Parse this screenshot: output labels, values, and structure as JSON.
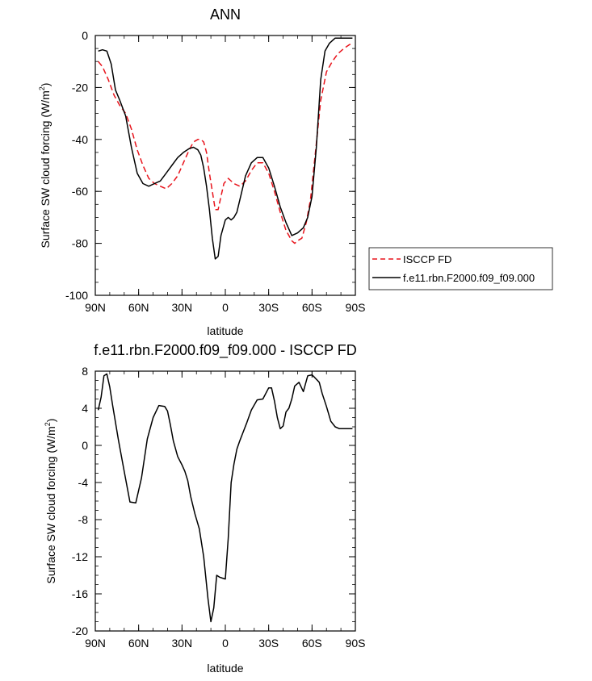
{
  "chart_data": [
    {
      "type": "line",
      "title": "ANN",
      "xlabel": "latitude",
      "ylabel": "Surface SW cloud forcing (W/m",
      "ylabel_sup": "2",
      "ylabel_close": ")",
      "xlim": [
        -90,
        90
      ],
      "ylim": [
        -100,
        0
      ],
      "xticks": [
        -90,
        -60,
        -30,
        0,
        30,
        60,
        90
      ],
      "xticklabels": [
        "90N",
        "60N",
        "30N",
        "0",
        "30S",
        "60S",
        "90S"
      ],
      "yticks": [
        0,
        -20,
        -40,
        -60,
        -80,
        -100
      ],
      "yticklabels": [
        "0",
        "-20",
        "-40",
        "-60",
        "-80",
        "-100"
      ],
      "legend": "outside-right",
      "series": [
        {
          "name": "ISCCP FD",
          "color": "#e8141c",
          "dash": "dashed",
          "x": [
            -88,
            -85,
            -81,
            -77,
            -73,
            -69,
            -65,
            -61,
            -57,
            -53,
            -49,
            -45,
            -41,
            -37,
            -33,
            -29,
            -25,
            -22,
            -19,
            -17,
            -15,
            -13,
            -11,
            -9,
            -7,
            -5,
            -3,
            -1,
            2,
            6,
            10,
            14,
            18,
            22,
            26,
            30,
            34,
            38,
            42,
            46,
            48,
            50,
            53,
            56,
            59,
            62,
            66,
            70,
            74,
            78,
            82,
            86,
            88
          ],
          "y": [
            -10,
            -12,
            -17,
            -23,
            -27,
            -30,
            -36,
            -44,
            -50,
            -55,
            -57,
            -58,
            -59,
            -57,
            -54,
            -49,
            -44,
            -41,
            -40,
            -40,
            -41,
            -45,
            -53,
            -60,
            -67,
            -67,
            -62,
            -57,
            -55,
            -57,
            -58,
            -56,
            -52,
            -49,
            -49,
            -53,
            -60,
            -68,
            -75,
            -79,
            -80,
            -79,
            -78,
            -72,
            -63,
            -47,
            -25,
            -14,
            -10,
            -7,
            -5,
            -3.5,
            -3
          ]
        },
        {
          "name": "f.e11.rbn.F2000.f09_f09.000",
          "color": "#000000",
          "dash": "solid",
          "x": [
            -88,
            -85,
            -82,
            -79,
            -76,
            -73,
            -69,
            -65,
            -61,
            -57,
            -53,
            -49,
            -45,
            -41,
            -37,
            -33,
            -29,
            -25,
            -22,
            -19,
            -17,
            -15,
            -13,
            -11,
            -9,
            -7,
            -5,
            -3,
            0,
            2,
            4,
            6,
            8,
            11,
            14,
            18,
            22,
            26,
            30,
            34,
            38,
            42,
            46,
            50,
            54,
            57,
            60,
            63,
            66,
            69,
            72,
            76,
            80,
            84,
            88
          ],
          "y": [
            -6,
            -5.5,
            -6,
            -11,
            -21,
            -25,
            -31,
            -43,
            -53,
            -57,
            -58,
            -57,
            -56,
            -53,
            -50,
            -47,
            -45,
            -43.5,
            -43,
            -44,
            -46,
            -51,
            -58,
            -67,
            -78,
            -86,
            -85,
            -77,
            -71,
            -70,
            -71,
            -70,
            -68,
            -61,
            -54,
            -49,
            -47,
            -47,
            -51,
            -58,
            -66,
            -72,
            -77,
            -76,
            -74,
            -70,
            -62,
            -43,
            -17,
            -6,
            -3,
            -1,
            -1,
            -1,
            -1
          ]
        }
      ]
    },
    {
      "type": "line",
      "title": "f.e11.rbn.F2000.f09_f09.000 - ISCCP FD",
      "xlabel": "latitude",
      "ylabel": "Surface SW cloud forcing (W/m",
      "ylabel_sup": "2",
      "ylabel_close": ")",
      "xlim": [
        -90,
        90
      ],
      "ylim": [
        -20,
        8
      ],
      "xticks": [
        -90,
        -60,
        -30,
        0,
        30,
        60,
        90
      ],
      "xticklabels": [
        "90N",
        "60N",
        "30N",
        "0",
        "30S",
        "60S",
        "90S"
      ],
      "yticks": [
        8,
        4,
        0,
        -4,
        -8,
        -12,
        -16,
        -20
      ],
      "yticklabels": [
        "8",
        "4",
        "0",
        "-4",
        "-8",
        "-12",
        "-16",
        "-20"
      ],
      "series": [
        {
          "color": "#000000",
          "dash": "solid",
          "x": [
            -88,
            -86,
            -84,
            -82,
            -80,
            -78,
            -74,
            -70,
            -66,
            -62,
            -58,
            -54,
            -50,
            -46,
            -42,
            -40,
            -38,
            -36,
            -33,
            -30,
            -28,
            -26,
            -24,
            -21,
            -18,
            -15,
            -12,
            -10,
            -8,
            -6,
            -4,
            -2,
            0,
            2,
            4,
            6,
            8,
            10,
            12,
            15,
            18,
            22,
            26,
            30,
            32,
            34,
            36,
            38,
            40,
            42,
            44,
            46,
            48,
            51,
            54,
            57,
            60,
            62,
            65,
            67,
            70,
            73,
            76,
            79,
            82,
            85,
            88
          ],
          "y": [
            3.8,
            5.2,
            7.5,
            7.7,
            6.3,
            4.3,
            0.6,
            -2.8,
            -6.1,
            -6.2,
            -3.5,
            0.7,
            3.0,
            4.3,
            4.2,
            3.7,
            2.2,
            0.5,
            -1.2,
            -2.1,
            -2.8,
            -3.8,
            -5.5,
            -7.4,
            -9.0,
            -12.0,
            -16.5,
            -19.0,
            -17.5,
            -14.0,
            -14.2,
            -14.3,
            -14.4,
            -10.0,
            -4.0,
            -2.0,
            -0.4,
            0.5,
            1.3,
            2.5,
            3.8,
            4.9,
            5.0,
            6.2,
            6.2,
            4.8,
            3.0,
            1.8,
            2.1,
            3.6,
            4.0,
            5.0,
            6.4,
            6.8,
            5.8,
            7.5,
            7.6,
            7.3,
            6.8,
            5.6,
            4.2,
            2.6,
            2.0,
            1.8,
            1.8,
            1.8,
            1.8
          ]
        }
      ]
    }
  ]
}
